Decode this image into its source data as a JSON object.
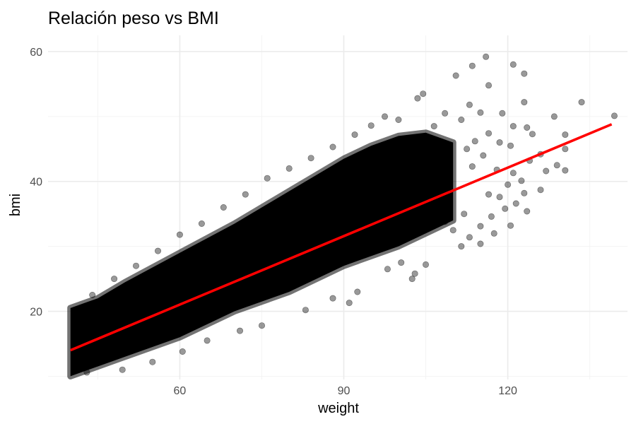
{
  "chart_data": {
    "type": "scatter",
    "title": "Relación peso vs BMI",
    "xlabel": "weight",
    "ylabel": "bmi",
    "xlim": [
      35.9,
      141.9
    ],
    "ylim": [
      9.5,
      62.5
    ],
    "x_ticks": [
      60,
      90,
      120
    ],
    "y_ticks": [
      20,
      40,
      60
    ],
    "grid": true,
    "legend": "none",
    "point_color": "#000000",
    "point_alpha": 0.4,
    "trend_line": {
      "color": "#ff0000",
      "points": [
        {
          "x": 40,
          "y": 14.0
        },
        {
          "x": 139,
          "y": 48.8
        }
      ]
    },
    "band": {
      "lower": [
        {
          "x": 40,
          "y": 10
        },
        {
          "x": 50,
          "y": 13
        },
        {
          "x": 60,
          "y": 16
        },
        {
          "x": 70,
          "y": 20
        },
        {
          "x": 80,
          "y": 23
        },
        {
          "x": 90,
          "y": 27
        },
        {
          "x": 100,
          "y": 30
        },
        {
          "x": 110,
          "y": 34
        }
      ],
      "upper": [
        {
          "x": 40,
          "y": 20.5
        },
        {
          "x": 45,
          "y": 22
        },
        {
          "x": 50,
          "y": 24.5
        },
        {
          "x": 60,
          "y": 29
        },
        {
          "x": 70,
          "y": 33.5
        },
        {
          "x": 80,
          "y": 38.5
        },
        {
          "x": 85,
          "y": 41
        },
        {
          "x": 90,
          "y": 43.5
        },
        {
          "x": 95,
          "y": 45.5
        },
        {
          "x": 100,
          "y": 47
        },
        {
          "x": 105,
          "y": 47.5
        },
        {
          "x": 110,
          "y": 46
        }
      ]
    },
    "outliers": [
      {
        "x": 116.0,
        "y": 59.2
      },
      {
        "x": 113.5,
        "y": 57.8
      },
      {
        "x": 121.0,
        "y": 58.0
      },
      {
        "x": 123.0,
        "y": 56.6
      },
      {
        "x": 110.5,
        "y": 56.3
      },
      {
        "x": 116.5,
        "y": 54.8
      },
      {
        "x": 104.5,
        "y": 53.5
      },
      {
        "x": 103.5,
        "y": 52.8
      },
      {
        "x": 133.5,
        "y": 52.2
      },
      {
        "x": 123.0,
        "y": 52.2
      },
      {
        "x": 113.0,
        "y": 51.8
      },
      {
        "x": 108.5,
        "y": 50.5
      },
      {
        "x": 115.0,
        "y": 50.6
      },
      {
        "x": 119.0,
        "y": 50.5
      },
      {
        "x": 111.5,
        "y": 49.5
      },
      {
        "x": 106.5,
        "y": 48.5
      },
      {
        "x": 139.5,
        "y": 50.1
      },
      {
        "x": 128.5,
        "y": 50.0
      },
      {
        "x": 121.0,
        "y": 48.5
      },
      {
        "x": 123.5,
        "y": 48.3
      },
      {
        "x": 124.5,
        "y": 47.3
      },
      {
        "x": 130.5,
        "y": 47.2
      },
      {
        "x": 116.5,
        "y": 47.4
      },
      {
        "x": 118.5,
        "y": 46.0
      },
      {
        "x": 120.5,
        "y": 45.5
      },
      {
        "x": 114.0,
        "y": 46.2
      },
      {
        "x": 130.5,
        "y": 45.0
      },
      {
        "x": 112.5,
        "y": 45.0
      },
      {
        "x": 115.5,
        "y": 44.0
      },
      {
        "x": 126.0,
        "y": 44.2
      },
      {
        "x": 124.0,
        "y": 43.2
      },
      {
        "x": 129.0,
        "y": 42.5
      },
      {
        "x": 127.0,
        "y": 41.6
      },
      {
        "x": 130.5,
        "y": 41.7
      },
      {
        "x": 121.0,
        "y": 41.3
      },
      {
        "x": 118.0,
        "y": 41.8
      },
      {
        "x": 113.5,
        "y": 42.3
      },
      {
        "x": 122.5,
        "y": 40.1
      },
      {
        "x": 120.0,
        "y": 39.5
      },
      {
        "x": 126.0,
        "y": 38.7
      },
      {
        "x": 123.0,
        "y": 38.2
      },
      {
        "x": 118.5,
        "y": 37.6
      },
      {
        "x": 116.5,
        "y": 38.0
      },
      {
        "x": 121.5,
        "y": 36.6
      },
      {
        "x": 123.5,
        "y": 35.4
      },
      {
        "x": 119.5,
        "y": 35.8
      },
      {
        "x": 117.0,
        "y": 34.6
      },
      {
        "x": 120.5,
        "y": 33.2
      },
      {
        "x": 115.0,
        "y": 33.1
      },
      {
        "x": 117.5,
        "y": 32.0
      },
      {
        "x": 113.0,
        "y": 31.4
      },
      {
        "x": 115.0,
        "y": 30.4
      },
      {
        "x": 111.5,
        "y": 30.0
      },
      {
        "x": 110.0,
        "y": 32.5
      },
      {
        "x": 108.5,
        "y": 33.8
      },
      {
        "x": 112.0,
        "y": 35.0
      },
      {
        "x": 105.0,
        "y": 27.2
      },
      {
        "x": 103.0,
        "y": 25.8
      },
      {
        "x": 102.5,
        "y": 25.0
      },
      {
        "x": 100.5,
        "y": 27.5
      },
      {
        "x": 98.0,
        "y": 26.5
      },
      {
        "x": 92.5,
        "y": 23.0
      },
      {
        "x": 91.0,
        "y": 21.3
      },
      {
        "x": 88.0,
        "y": 22.0
      },
      {
        "x": 83.0,
        "y": 20.2
      },
      {
        "x": 75.0,
        "y": 17.8
      },
      {
        "x": 71.0,
        "y": 17.0
      },
      {
        "x": 65.0,
        "y": 15.5
      },
      {
        "x": 60.5,
        "y": 13.8
      },
      {
        "x": 55.0,
        "y": 12.2
      },
      {
        "x": 49.5,
        "y": 11.0
      },
      {
        "x": 43.0,
        "y": 10.6
      },
      {
        "x": 97.5,
        "y": 50.0
      },
      {
        "x": 100.0,
        "y": 49.5
      },
      {
        "x": 95.0,
        "y": 48.6
      },
      {
        "x": 92.0,
        "y": 47.2
      },
      {
        "x": 88.0,
        "y": 45.3
      },
      {
        "x": 84.0,
        "y": 43.6
      },
      {
        "x": 80.0,
        "y": 42.0
      },
      {
        "x": 76.0,
        "y": 40.5
      },
      {
        "x": 72.0,
        "y": 38.0
      },
      {
        "x": 68.0,
        "y": 36.0
      },
      {
        "x": 64.0,
        "y": 33.5
      },
      {
        "x": 60.0,
        "y": 31.8
      },
      {
        "x": 56.0,
        "y": 29.3
      },
      {
        "x": 52.0,
        "y": 27.0
      },
      {
        "x": 48.0,
        "y": 25.0
      },
      {
        "x": 44.0,
        "y": 22.5
      }
    ]
  }
}
